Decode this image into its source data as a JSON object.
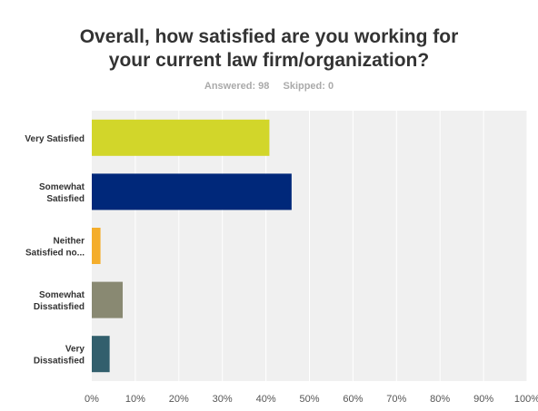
{
  "header": {
    "title_line1": "Overall, how satisfied are you working for",
    "title_line2": "your current law firm/organization?",
    "answered": "Answered: 98",
    "skipped": "Skipped: 0"
  },
  "colors": {
    "plot_background": "#f0f0f0",
    "gridline": "#ffffff",
    "label_text": "#333333",
    "tick_text": "#555555"
  },
  "chart_data": {
    "type": "bar",
    "orientation": "horizontal",
    "title": "Overall, how satisfied are you working for your current law firm/organization?",
    "xlabel": "",
    "ylabel": "",
    "xlim": [
      0,
      100
    ],
    "grid": true,
    "categories": [
      [
        "Very Satisfied"
      ],
      [
        "Somewhat",
        "Satisfied"
      ],
      [
        "Neither",
        "Satisfied no..."
      ],
      [
        "Somewhat",
        "Dissatisfied"
      ],
      [
        "Very",
        "Dissatisfied"
      ]
    ],
    "values": [
      40.8,
      45.9,
      2.0,
      7.1,
      4.1
    ],
    "bar_colors": [
      "#d2d62a",
      "#00287a",
      "#f4ad2b",
      "#898972",
      "#325f6d"
    ],
    "ticks": [
      "0%",
      "10%",
      "20%",
      "30%",
      "40%",
      "50%",
      "60%",
      "70%",
      "80%",
      "90%",
      "100%"
    ]
  }
}
